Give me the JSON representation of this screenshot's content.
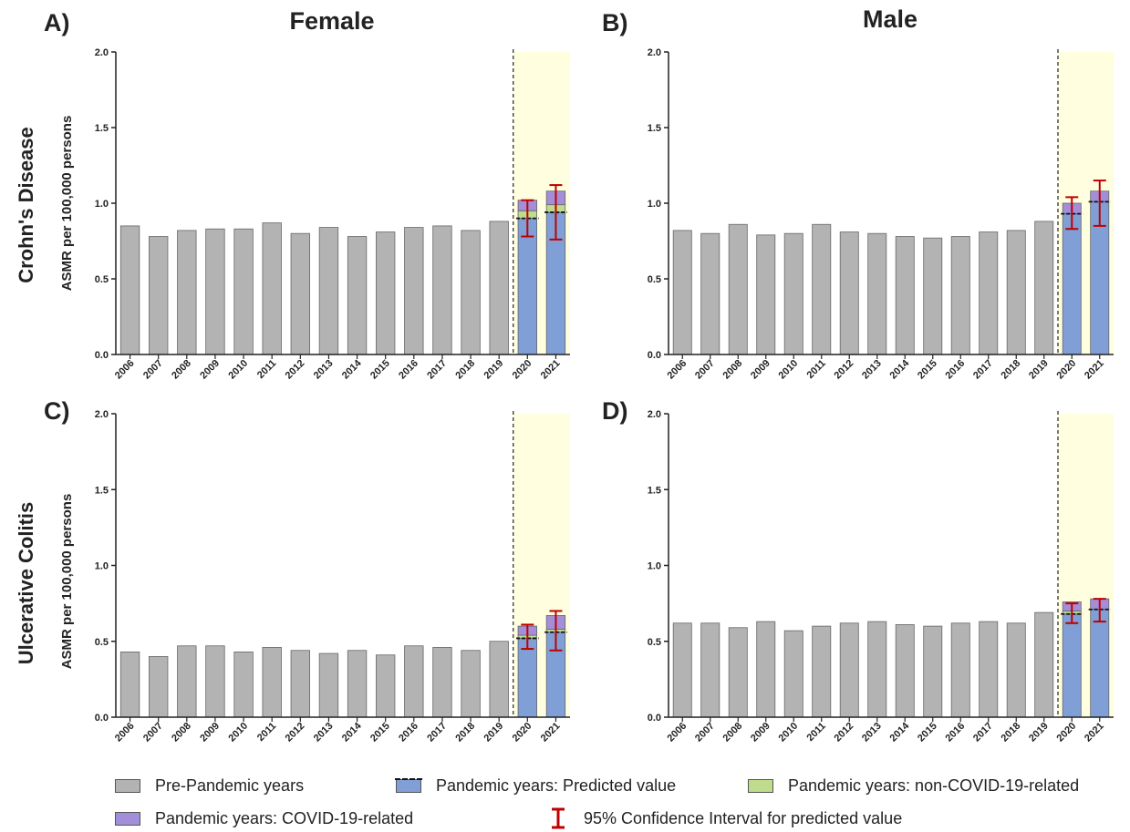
{
  "colors": {
    "pre_pandemic": "#b3b3b3",
    "predicted": "#7f9fd6",
    "non_covid": "#bedc8c",
    "covid": "#a38ed9",
    "ci": "#c00000",
    "highlight": "#ffffdf",
    "bar_edge": "#666666"
  },
  "column_titles": [
    "Female",
    "Male"
  ],
  "row_titles": [
    "Crohn's Disease",
    "Ulcerative Colitis"
  ],
  "ylabel": "ASMR per 100,000 persons",
  "legend": {
    "pre_pandemic": "Pre-Pandemic years",
    "predicted": "Pandemic years: Predicted value",
    "non_covid": "Pandemic years: non-COVID-19-related",
    "covid": "Pandemic years: COVID-19-related",
    "ci": "95% Confidence Interval for predicted value"
  },
  "chart_data": [
    {
      "type": "bar",
      "panel": "A)",
      "categories": [
        "2006",
        "2007",
        "2008",
        "2009",
        "2010",
        "2011",
        "2012",
        "2013",
        "2014",
        "2015",
        "2016",
        "2017",
        "2018",
        "2019",
        "2020",
        "2021"
      ],
      "pre_pandemic": [
        0.85,
        0.78,
        0.82,
        0.83,
        0.83,
        0.87,
        0.8,
        0.84,
        0.78,
        0.81,
        0.84,
        0.85,
        0.82,
        0.88
      ],
      "pandemic": [
        {
          "year": "2020",
          "predicted": 0.9,
          "non_covid": 0.05,
          "covid": 0.07,
          "ci": [
            0.78,
            1.02
          ]
        },
        {
          "year": "2021",
          "predicted": 0.94,
          "non_covid": 0.05,
          "covid": 0.09,
          "ci": [
            0.76,
            1.12
          ]
        }
      ],
      "ylim": [
        0,
        2.0
      ],
      "yticks": [
        "0.0",
        "0.5",
        "1.0",
        "1.5",
        "2.0"
      ]
    },
    {
      "type": "bar",
      "panel": "B)",
      "categories": [
        "2006",
        "2007",
        "2008",
        "2009",
        "2010",
        "2011",
        "2012",
        "2013",
        "2014",
        "2015",
        "2016",
        "2017",
        "2018",
        "2019",
        "2020",
        "2021"
      ],
      "pre_pandemic": [
        0.82,
        0.8,
        0.86,
        0.79,
        0.8,
        0.86,
        0.81,
        0.8,
        0.78,
        0.77,
        0.78,
        0.81,
        0.82,
        0.88
      ],
      "pandemic": [
        {
          "year": "2020",
          "predicted": 0.93,
          "non_covid": 0.0,
          "covid": 0.07,
          "ci": [
            0.83,
            1.04
          ]
        },
        {
          "year": "2021",
          "predicted": 1.01,
          "non_covid": 0.0,
          "covid": 0.07,
          "ci": [
            0.85,
            1.15
          ]
        }
      ],
      "ylim": [
        0,
        2.0
      ],
      "yticks": [
        "0.0",
        "0.5",
        "1.0",
        "1.5",
        "2.0"
      ]
    },
    {
      "type": "bar",
      "panel": "C)",
      "categories": [
        "2006",
        "2007",
        "2008",
        "2009",
        "2010",
        "2011",
        "2012",
        "2013",
        "2014",
        "2015",
        "2016",
        "2017",
        "2018",
        "2019",
        "2020",
        "2021"
      ],
      "pre_pandemic": [
        0.43,
        0.4,
        0.47,
        0.47,
        0.43,
        0.46,
        0.44,
        0.42,
        0.44,
        0.41,
        0.47,
        0.46,
        0.44,
        0.5
      ],
      "pandemic": [
        {
          "year": "2020",
          "predicted": 0.52,
          "non_covid": 0.02,
          "covid": 0.06,
          "ci": [
            0.45,
            0.61
          ]
        },
        {
          "year": "2021",
          "predicted": 0.56,
          "non_covid": 0.02,
          "covid": 0.09,
          "ci": [
            0.44,
            0.7
          ]
        }
      ],
      "ylim": [
        0,
        2.0
      ],
      "yticks": [
        "0.0",
        "0.5",
        "1.0",
        "1.5",
        "2.0"
      ]
    },
    {
      "type": "bar",
      "panel": "D)",
      "categories": [
        "2006",
        "2007",
        "2008",
        "2009",
        "2010",
        "2011",
        "2012",
        "2013",
        "2014",
        "2015",
        "2016",
        "2017",
        "2018",
        "2019",
        "2020",
        "2021"
      ],
      "pre_pandemic": [
        0.62,
        0.62,
        0.59,
        0.63,
        0.57,
        0.6,
        0.62,
        0.63,
        0.61,
        0.6,
        0.62,
        0.63,
        0.62,
        0.69
      ],
      "pandemic": [
        {
          "year": "2020",
          "predicted": 0.68,
          "non_covid": 0.02,
          "covid": 0.06,
          "ci": [
            0.62,
            0.75
          ]
        },
        {
          "year": "2021",
          "predicted": 0.71,
          "non_covid": 0.0,
          "covid": 0.07,
          "ci": [
            0.63,
            0.78
          ]
        }
      ],
      "ylim": [
        0,
        2.0
      ],
      "yticks": [
        "0.0",
        "0.5",
        "1.0",
        "1.5",
        "2.0"
      ]
    }
  ]
}
